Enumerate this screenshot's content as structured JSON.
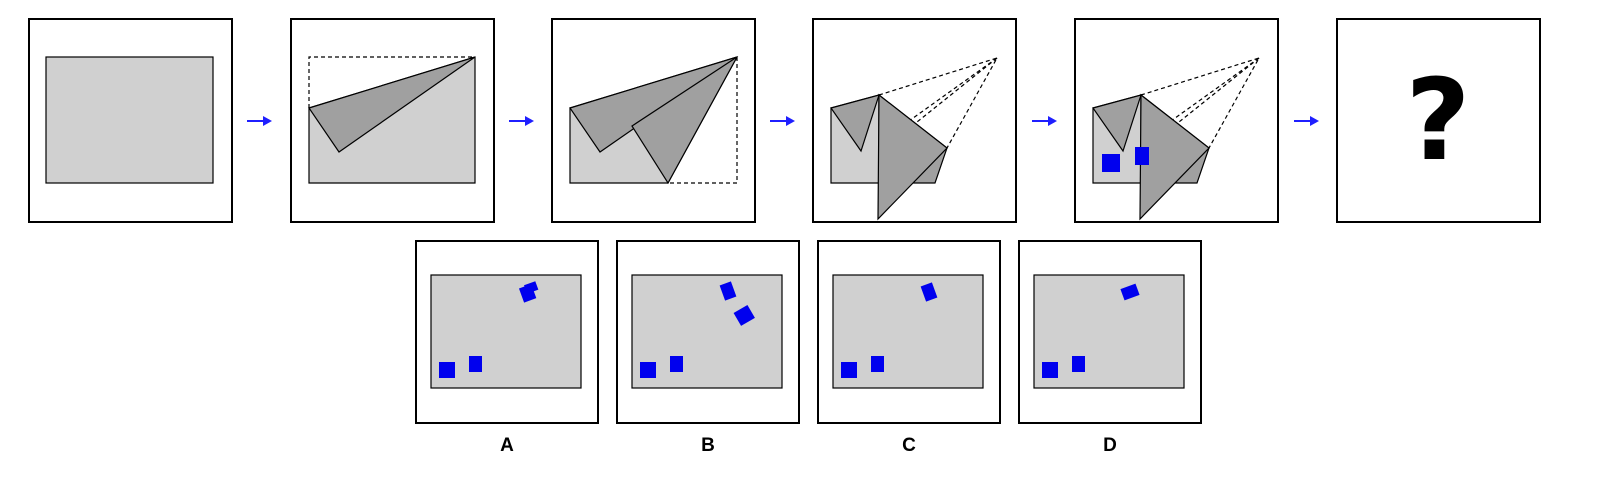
{
  "puzzle": {
    "question_mark": "?",
    "hole_color": "#0000ee",
    "paper_color": "#d0d0d0",
    "fold_color": "#a0a0a0",
    "arrow_color": "#1f1fff"
  },
  "options": [
    {
      "label": "A"
    },
    {
      "label": "B"
    },
    {
      "label": "C"
    },
    {
      "label": "D"
    }
  ]
}
